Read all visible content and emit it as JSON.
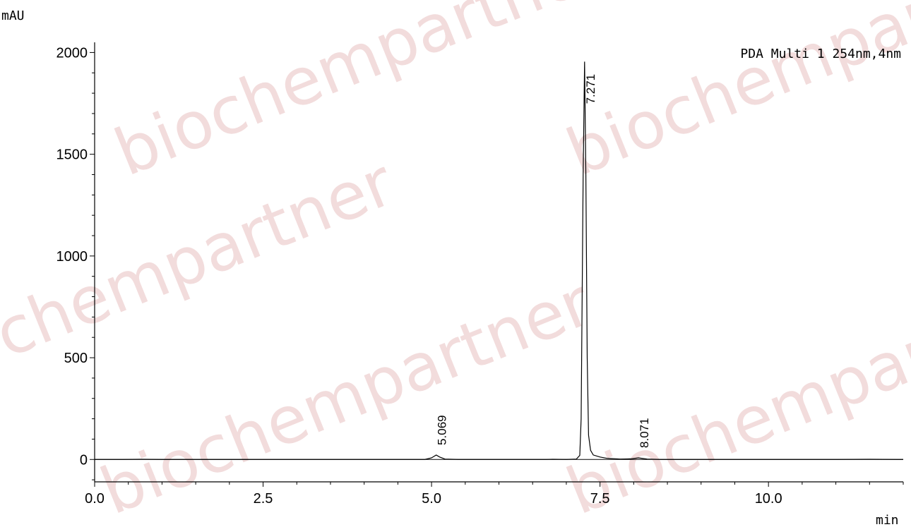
{
  "watermark": "biochempartner",
  "chart_data": {
    "type": "line",
    "title": "",
    "xlabel": "min",
    "ylabel": "mAU",
    "legend": "PDA Multi 1 254nm,4nm",
    "xlim": [
      0,
      12
    ],
    "ylim": [
      -110,
      2050
    ],
    "x_ticks": [
      {
        "value": 0,
        "label": "0.0"
      },
      {
        "value": 2.5,
        "label": "2.5"
      },
      {
        "value": 5.0,
        "label": "5.0"
      },
      {
        "value": 7.5,
        "label": "7.5"
      },
      {
        "value": 10.0,
        "label": "10.0"
      }
    ],
    "y_ticks": [
      {
        "value": 0,
        "label": "0"
      },
      {
        "value": 500,
        "label": "500"
      },
      {
        "value": 1000,
        "label": "1000"
      },
      {
        "value": 1500,
        "label": "1500"
      },
      {
        "value": 2000,
        "label": "2000"
      }
    ],
    "peaks": [
      {
        "label": "5.069",
        "rt": 5.069,
        "height": 22
      },
      {
        "label": "7.271",
        "rt": 7.271,
        "height": 1955
      },
      {
        "label": "8.071",
        "rt": 8.071,
        "height": 8
      }
    ],
    "series": [
      {
        "x": [
          0.0,
          0.4,
          0.7,
          1.0,
          1.5,
          2.0,
          3.0,
          4.0,
          4.9,
          5.0,
          5.069,
          5.12,
          5.2,
          5.4,
          6.0,
          6.7,
          6.8,
          7.0,
          7.15,
          7.2,
          7.22,
          7.25,
          7.271,
          7.29,
          7.31,
          7.33,
          7.36,
          7.4,
          7.5,
          7.6,
          7.8,
          7.95,
          8.071,
          8.2,
          8.4,
          9.0,
          10.0,
          11.0,
          11.5,
          12.0
        ],
        "y": [
          0,
          0,
          1,
          0,
          0,
          0,
          0,
          0,
          0,
          8,
          22,
          12,
          2,
          0,
          0,
          0,
          1,
          0,
          2,
          20,
          200,
          1400,
          1955,
          1400,
          500,
          120,
          45,
          22,
          12,
          6,
          2,
          3,
          8,
          2,
          0,
          0,
          0,
          0,
          1,
          0
        ]
      }
    ]
  }
}
